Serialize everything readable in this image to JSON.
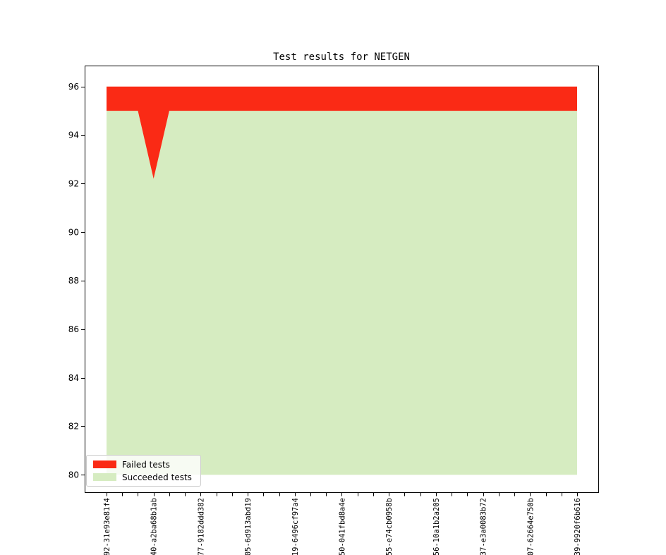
{
  "chart_data": {
    "type": "area",
    "stacked": true,
    "title": "Test results for NETGEN",
    "xlabel": "",
    "ylabel": "",
    "n_points": 31,
    "x_label_every_n_ticks": 3,
    "x_tick_labels": [
      "92-31e93e81f4",
      "40-a2ba68b1ab",
      "77-9182ddd382",
      "05-6d913abd19",
      "19-6496cf97a4",
      "50-041fbd8a4e",
      "55-e74cb0958b",
      "56-10a1b2a205",
      "37-e3a0083b72",
      "07-62664e750b",
      "39-9920f6b616"
    ],
    "y_ticks": [
      80,
      82,
      84,
      86,
      88,
      90,
      92,
      94,
      96
    ],
    "ylim": [
      79.2,
      96.8
    ],
    "baseline": 80,
    "total_constant": 96,
    "series": [
      {
        "name": "Succeeded tests",
        "color": "#d6ecc1",
        "values": [
          95,
          95,
          95,
          92.2,
          95,
          95,
          95,
          95,
          95,
          95,
          95,
          95,
          95,
          95,
          95,
          95,
          95,
          95,
          95,
          95,
          95,
          95,
          95,
          95,
          95,
          95,
          95,
          95,
          95,
          95,
          95
        ]
      },
      {
        "name": "Failed tests",
        "color": "#fa2a15",
        "values": [
          1,
          1,
          1,
          3.8,
          1,
          1,
          1,
          1,
          1,
          1,
          1,
          1,
          1,
          1,
          1,
          1,
          1,
          1,
          1,
          1,
          1,
          1,
          1,
          1,
          1,
          1,
          1,
          1,
          1,
          1,
          1
        ]
      }
    ],
    "legend": {
      "position": "lower left",
      "items": [
        {
          "label": "Failed tests",
          "color": "#fa2a15"
        },
        {
          "label": "Succeeded tests",
          "color": "#d6ecc1"
        }
      ]
    }
  }
}
